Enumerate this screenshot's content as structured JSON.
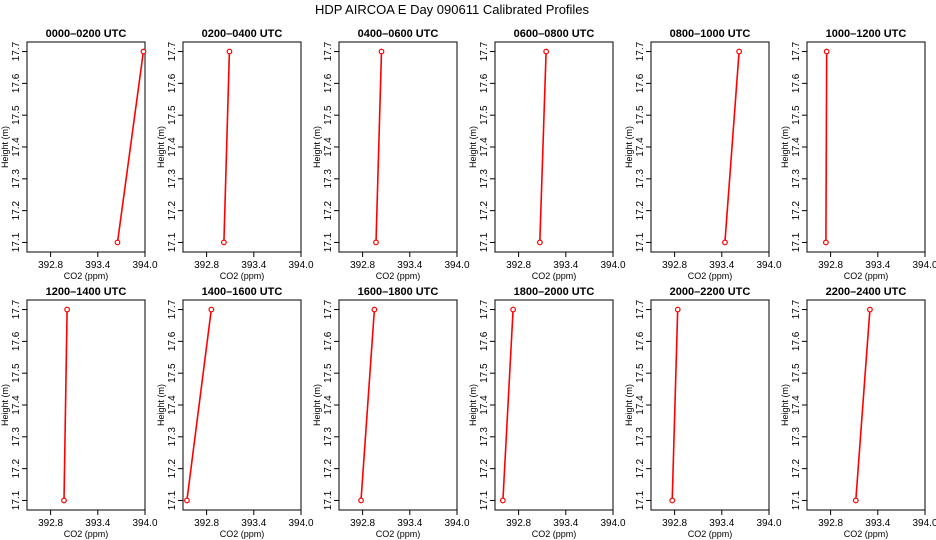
{
  "title": "HDP AIRCOA E  Day 090611  Calibrated Profiles",
  "colors": {
    "series": "#ff0000",
    "frame": "#000000",
    "background": "#ffffff"
  },
  "chart_data": [
    {
      "type": "line",
      "title": "0000–0200 UTC",
      "xlabel": "CO2 (ppm)",
      "ylabel": "Height (m)",
      "xlim": [
        392.5,
        394.0
      ],
      "ylim": [
        17.07,
        17.73
      ],
      "xticks": [
        "392.8",
        "393.4",
        "394.0"
      ],
      "yticks": [
        "17.1",
        "17.2",
        "17.3",
        "17.4",
        "17.5",
        "17.6",
        "17.7"
      ],
      "x": [
        393.65,
        393.98
      ],
      "y": [
        17.1,
        17.7
      ]
    },
    {
      "type": "line",
      "title": "0200–0400 UTC",
      "xlabel": "CO2 (ppm)",
      "ylabel": "Height (m)",
      "xlim": [
        392.5,
        394.0
      ],
      "ylim": [
        17.07,
        17.73
      ],
      "xticks": [
        "392.8",
        "393.4",
        "394.0"
      ],
      "yticks": [
        "17.1",
        "17.2",
        "17.3",
        "17.4",
        "17.5",
        "17.6",
        "17.7"
      ],
      "x": [
        393.02,
        393.09
      ],
      "y": [
        17.1,
        17.7
      ]
    },
    {
      "type": "line",
      "title": "0400–0600 UTC",
      "xlabel": "CO2 (ppm)",
      "ylabel": "Height (m)",
      "xlim": [
        392.5,
        394.0
      ],
      "ylim": [
        17.07,
        17.73
      ],
      "xticks": [
        "392.8",
        "393.4",
        "394.0"
      ],
      "yticks": [
        "17.1",
        "17.2",
        "17.3",
        "17.4",
        "17.5",
        "17.6",
        "17.7"
      ],
      "x": [
        392.97,
        393.04
      ],
      "y": [
        17.1,
        17.7
      ]
    },
    {
      "type": "line",
      "title": "0600–0800 UTC",
      "xlabel": "CO2 (ppm)",
      "ylabel": "Height (m)",
      "xlim": [
        392.5,
        394.0
      ],
      "ylim": [
        17.07,
        17.73
      ],
      "xticks": [
        "392.8",
        "393.4",
        "394.0"
      ],
      "yticks": [
        "17.1",
        "17.2",
        "17.3",
        "17.4",
        "17.5",
        "17.6",
        "17.7"
      ],
      "x": [
        393.07,
        393.15
      ],
      "y": [
        17.1,
        17.7
      ]
    },
    {
      "type": "line",
      "title": "0800–1000 UTC",
      "xlabel": "CO2 (ppm)",
      "ylabel": "Height (m)",
      "xlim": [
        392.5,
        394.0
      ],
      "ylim": [
        17.07,
        17.73
      ],
      "xticks": [
        "392.8",
        "393.4",
        "394.0"
      ],
      "yticks": [
        "17.1",
        "17.2",
        "17.3",
        "17.4",
        "17.5",
        "17.6",
        "17.7"
      ],
      "x": [
        393.44,
        393.62
      ],
      "y": [
        17.1,
        17.7
      ]
    },
    {
      "type": "line",
      "title": "1000–1200 UTC",
      "xlabel": "CO2 (ppm)",
      "ylabel": "Height (m)",
      "xlim": [
        392.5,
        394.0
      ],
      "ylim": [
        17.07,
        17.73
      ],
      "xticks": [
        "392.8",
        "393.4",
        "394.0"
      ],
      "yticks": [
        "17.1",
        "17.2",
        "17.3",
        "17.4",
        "17.5",
        "17.6",
        "17.7"
      ],
      "x": [
        392.74,
        392.75
      ],
      "y": [
        17.1,
        17.7
      ]
    },
    {
      "type": "line",
      "title": "1200–1400 UTC",
      "xlabel": "CO2 (ppm)",
      "ylabel": "Height (m)",
      "xlim": [
        392.5,
        394.0
      ],
      "ylim": [
        17.07,
        17.73
      ],
      "xticks": [
        "392.8",
        "393.4",
        "394.0"
      ],
      "yticks": [
        "17.1",
        "17.2",
        "17.3",
        "17.4",
        "17.5",
        "17.6",
        "17.7"
      ],
      "x": [
        392.97,
        393.01
      ],
      "y": [
        17.1,
        17.7
      ]
    },
    {
      "type": "line",
      "title": "1400–1600 UTC",
      "xlabel": "CO2 (ppm)",
      "ylabel": "Height (m)",
      "xlim": [
        392.5,
        394.0
      ],
      "ylim": [
        17.07,
        17.73
      ],
      "xticks": [
        "392.8",
        "393.4",
        "394.0"
      ],
      "yticks": [
        "17.1",
        "17.2",
        "17.3",
        "17.4",
        "17.5",
        "17.6",
        "17.7"
      ],
      "x": [
        392.55,
        392.86
      ],
      "y": [
        17.1,
        17.7
      ]
    },
    {
      "type": "line",
      "title": "1600–1800 UTC",
      "xlabel": "CO2 (ppm)",
      "ylabel": "Height (m)",
      "xlim": [
        392.5,
        394.0
      ],
      "ylim": [
        17.07,
        17.73
      ],
      "xticks": [
        "392.8",
        "393.4",
        "394.0"
      ],
      "yticks": [
        "17.1",
        "17.2",
        "17.3",
        "17.4",
        "17.5",
        "17.6",
        "17.7"
      ],
      "x": [
        392.78,
        392.95
      ],
      "y": [
        17.1,
        17.7
      ]
    },
    {
      "type": "line",
      "title": "1800–2000 UTC",
      "xlabel": "CO2 (ppm)",
      "ylabel": "Height (m)",
      "xlim": [
        392.5,
        394.0
      ],
      "ylim": [
        17.07,
        17.73
      ],
      "xticks": [
        "392.8",
        "393.4",
        "394.0"
      ],
      "yticks": [
        "17.1",
        "17.2",
        "17.3",
        "17.4",
        "17.5",
        "17.6",
        "17.7"
      ],
      "x": [
        392.6,
        392.73
      ],
      "y": [
        17.1,
        17.7
      ]
    },
    {
      "type": "line",
      "title": "2000–2200 UTC",
      "xlabel": "CO2 (ppm)",
      "ylabel": "Height (m)",
      "xlim": [
        392.5,
        394.0
      ],
      "ylim": [
        17.07,
        17.73
      ],
      "xticks": [
        "392.8",
        "393.4",
        "394.0"
      ],
      "yticks": [
        "17.1",
        "17.2",
        "17.3",
        "17.4",
        "17.5",
        "17.6",
        "17.7"
      ],
      "x": [
        392.77,
        392.84
      ],
      "y": [
        17.1,
        17.7
      ]
    },
    {
      "type": "line",
      "title": "2200–2400 UTC",
      "xlabel": "CO2 (ppm)",
      "ylabel": "Height (m)",
      "xlim": [
        392.5,
        394.0
      ],
      "ylim": [
        17.07,
        17.73
      ],
      "xticks": [
        "392.8",
        "393.4",
        "394.0"
      ],
      "yticks": [
        "17.1",
        "17.2",
        "17.3",
        "17.4",
        "17.5",
        "17.6",
        "17.7"
      ],
      "x": [
        393.12,
        393.3
      ],
      "y": [
        17.1,
        17.7
      ]
    }
  ]
}
